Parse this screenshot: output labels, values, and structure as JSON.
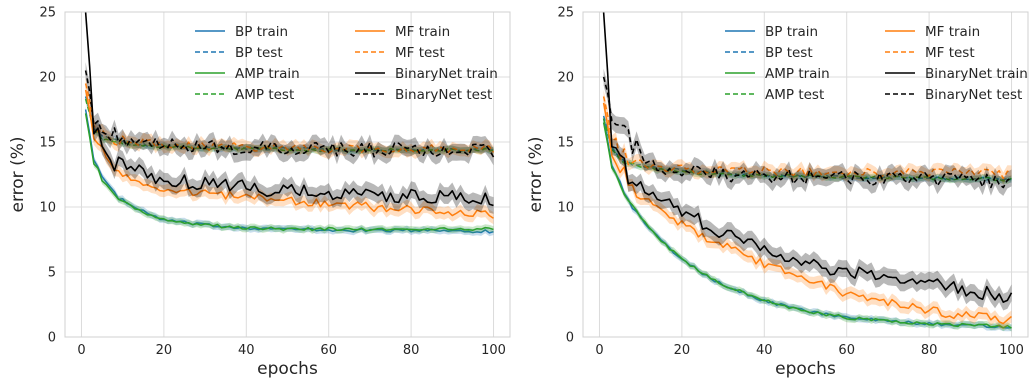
{
  "chart_data": [
    {
      "type": "line",
      "panel": "left",
      "xlabel": "epochs",
      "ylabel": "error (%)",
      "xlim": [
        -4,
        104
      ],
      "ylim": [
        0,
        25
      ],
      "xticks": [
        "0",
        "20",
        "40",
        "60",
        "80",
        "100"
      ],
      "yticks": [
        "0",
        "5",
        "10",
        "15",
        "20",
        "25"
      ],
      "grid": true,
      "legend": "top-right",
      "series": [
        {
          "name": "BP  train",
          "color": "#1f77b4",
          "dash": "solid",
          "band": true,
          "x": [
            1,
            3,
            5,
            8,
            12,
            16,
            20,
            25,
            30,
            40,
            50,
            60,
            70,
            80,
            90,
            100
          ],
          "y": [
            17.5,
            13.8,
            12.3,
            11.0,
            10.1,
            9.5,
            9.0,
            8.8,
            8.6,
            8.4,
            8.3,
            8.2,
            8.2,
            8.2,
            8.2,
            8.1
          ]
        },
        {
          "name": "BP  test",
          "color": "#1f77b4",
          "dash": "dashed",
          "band": true,
          "x": [
            1,
            3,
            5,
            8,
            12,
            16,
            20,
            25,
            30,
            40,
            50,
            60,
            70,
            80,
            90,
            100
          ],
          "y": [
            18.5,
            16.2,
            15.5,
            15.1,
            14.9,
            14.8,
            14.7,
            14.6,
            14.6,
            14.5,
            14.5,
            14.4,
            14.4,
            14.4,
            14.4,
            14.4
          ]
        },
        {
          "name": "AMP train",
          "color": "#2ca02c",
          "dash": "solid",
          "band": true,
          "x": [
            1,
            3,
            5,
            8,
            12,
            16,
            20,
            25,
            30,
            40,
            50,
            60,
            70,
            80,
            90,
            100
          ],
          "y": [
            17.2,
            13.5,
            12.1,
            10.9,
            10.0,
            9.4,
            9.0,
            8.8,
            8.6,
            8.4,
            8.3,
            8.3,
            8.3,
            8.3,
            8.3,
            8.3
          ]
        },
        {
          "name": "AMP test",
          "color": "#2ca02c",
          "dash": "dashed",
          "band": true,
          "x": [
            1,
            3,
            5,
            8,
            12,
            16,
            20,
            25,
            30,
            40,
            50,
            60,
            70,
            80,
            90,
            100
          ],
          "y": [
            18.3,
            16.0,
            15.3,
            15.0,
            14.8,
            14.7,
            14.6,
            14.6,
            14.5,
            14.5,
            14.4,
            14.4,
            14.4,
            14.4,
            14.4,
            14.4
          ]
        },
        {
          "name": "MF train",
          "color": "#ff7f0e",
          "dash": "solid",
          "band": true,
          "x": [
            1,
            3,
            5,
            8,
            12,
            16,
            20,
            25,
            30,
            40,
            50,
            60,
            70,
            80,
            90,
            100
          ],
          "y": [
            19.0,
            15.8,
            14.2,
            13.0,
            12.2,
            11.8,
            11.5,
            11.2,
            11.0,
            10.8,
            10.5,
            10.2,
            10.0,
            9.8,
            9.6,
            9.3
          ]
        },
        {
          "name": "MF test",
          "color": "#ff7f0e",
          "dash": "dashed",
          "band": true,
          "x": [
            1,
            3,
            5,
            8,
            12,
            16,
            20,
            25,
            30,
            40,
            50,
            60,
            70,
            80,
            90,
            100
          ],
          "y": [
            19.5,
            16.8,
            15.7,
            15.2,
            15.0,
            14.9,
            14.8,
            14.7,
            14.7,
            14.6,
            14.6,
            14.5,
            14.5,
            14.5,
            14.5,
            14.4
          ]
        },
        {
          "name": "BinaryNet train",
          "color": "#000000",
          "dash": "solid",
          "band": true,
          "x": [
            1,
            3,
            5,
            8,
            12,
            16,
            20,
            25,
            30,
            40,
            50,
            60,
            70,
            80,
            90,
            100
          ],
          "y": [
            25.0,
            16.5,
            14.6,
            13.6,
            13.0,
            12.5,
            12.2,
            12.0,
            11.8,
            11.5,
            11.2,
            11.0,
            10.9,
            10.8,
            10.7,
            10.5
          ]
        },
        {
          "name": "BinaryNet test",
          "color": "#000000",
          "dash": "dashed",
          "band": true,
          "x": [
            1,
            3,
            5,
            8,
            12,
            16,
            20,
            25,
            30,
            40,
            50,
            60,
            70,
            80,
            90,
            100
          ],
          "y": [
            20.5,
            17.2,
            16.0,
            15.4,
            15.0,
            14.9,
            14.8,
            14.7,
            14.6,
            14.5,
            14.5,
            14.4,
            14.4,
            14.4,
            14.3,
            14.3
          ]
        }
      ]
    },
    {
      "type": "line",
      "panel": "right",
      "xlabel": "epochs",
      "ylabel": "error (%)",
      "xlim": [
        -4,
        104
      ],
      "ylim": [
        0,
        25
      ],
      "xticks": [
        "0",
        "20",
        "40",
        "60",
        "80",
        "100"
      ],
      "yticks": [
        "0",
        "5",
        "10",
        "15",
        "20",
        "25"
      ],
      "grid": true,
      "legend": "top-right",
      "series": [
        {
          "name": "BP  train",
          "color": "#1f77b4",
          "dash": "solid",
          "band": true,
          "x": [
            1,
            3,
            5,
            8,
            12,
            16,
            20,
            25,
            30,
            40,
            50,
            60,
            70,
            80,
            90,
            100
          ],
          "y": [
            16.8,
            13.4,
            11.8,
            10.0,
            8.4,
            7.1,
            6.0,
            4.9,
            4.0,
            2.8,
            2.0,
            1.5,
            1.2,
            1.0,
            0.9,
            0.8
          ]
        },
        {
          "name": "BP  test",
          "color": "#1f77b4",
          "dash": "dashed",
          "band": true,
          "x": [
            1,
            3,
            5,
            8,
            12,
            16,
            20,
            25,
            30,
            40,
            50,
            60,
            70,
            80,
            90,
            100
          ],
          "y": [
            17.0,
            14.8,
            13.8,
            13.4,
            13.1,
            12.9,
            12.8,
            12.7,
            12.6,
            12.5,
            12.4,
            12.3,
            12.3,
            12.2,
            12.2,
            12.2
          ]
        },
        {
          "name": "AMP train",
          "color": "#2ca02c",
          "dash": "solid",
          "band": true,
          "x": [
            1,
            3,
            5,
            8,
            12,
            16,
            20,
            25,
            30,
            40,
            50,
            60,
            70,
            80,
            90,
            100
          ],
          "y": [
            16.5,
            13.2,
            11.7,
            10.0,
            8.4,
            7.1,
            6.0,
            4.9,
            4.0,
            2.8,
            2.0,
            1.5,
            1.2,
            1.0,
            0.9,
            0.8
          ]
        },
        {
          "name": "AMP test",
          "color": "#2ca02c",
          "dash": "dashed",
          "band": true,
          "x": [
            1,
            3,
            5,
            8,
            12,
            16,
            20,
            25,
            30,
            40,
            50,
            60,
            70,
            80,
            90,
            100
          ],
          "y": [
            16.8,
            14.6,
            13.7,
            13.3,
            13.0,
            12.8,
            12.7,
            12.6,
            12.5,
            12.4,
            12.4,
            12.3,
            12.3,
            12.2,
            12.2,
            12.1
          ]
        },
        {
          "name": "MF train",
          "color": "#ff7f0e",
          "dash": "solid",
          "band": true,
          "x": [
            1,
            3,
            5,
            8,
            12,
            16,
            20,
            25,
            30,
            40,
            50,
            60,
            70,
            80,
            90,
            100
          ],
          "y": [
            18.0,
            14.5,
            13.0,
            11.6,
            10.3,
            9.4,
            8.7,
            7.8,
            7.0,
            5.6,
            4.4,
            3.4,
            2.6,
            2.0,
            1.6,
            1.3
          ]
        },
        {
          "name": "MF test",
          "color": "#ff7f0e",
          "dash": "dashed",
          "band": true,
          "x": [
            1,
            3,
            5,
            8,
            12,
            16,
            20,
            25,
            30,
            40,
            50,
            60,
            70,
            80,
            90,
            100
          ],
          "y": [
            18.5,
            15.6,
            14.2,
            13.5,
            13.2,
            13.0,
            12.9,
            12.9,
            12.8,
            12.8,
            12.7,
            12.7,
            12.6,
            12.6,
            12.6,
            12.5
          ]
        },
        {
          "name": "BinaryNet train",
          "color": "#000000",
          "dash": "solid",
          "band": true,
          "x": [
            1,
            3,
            5,
            8,
            12,
            16,
            20,
            25,
            30,
            40,
            50,
            60,
            70,
            80,
            90,
            100
          ],
          "y": [
            25.0,
            15.5,
            13.4,
            12.3,
            11.2,
            10.4,
            9.8,
            8.8,
            8.0,
            6.7,
            5.8,
            5.0,
            4.5,
            4.0,
            3.6,
            3.1
          ]
        },
        {
          "name": "BinaryNet test",
          "color": "#000000",
          "dash": "dashed",
          "band": true,
          "x": [
            1,
            3,
            5,
            8,
            12,
            16,
            20,
            25,
            30,
            40,
            50,
            60,
            70,
            80,
            90,
            100
          ],
          "y": [
            20.0,
            17.5,
            16.0,
            14.8,
            13.6,
            13.0,
            12.8,
            12.6,
            12.5,
            12.4,
            12.3,
            12.2,
            12.2,
            12.2,
            12.1,
            12.0
          ]
        }
      ]
    }
  ]
}
